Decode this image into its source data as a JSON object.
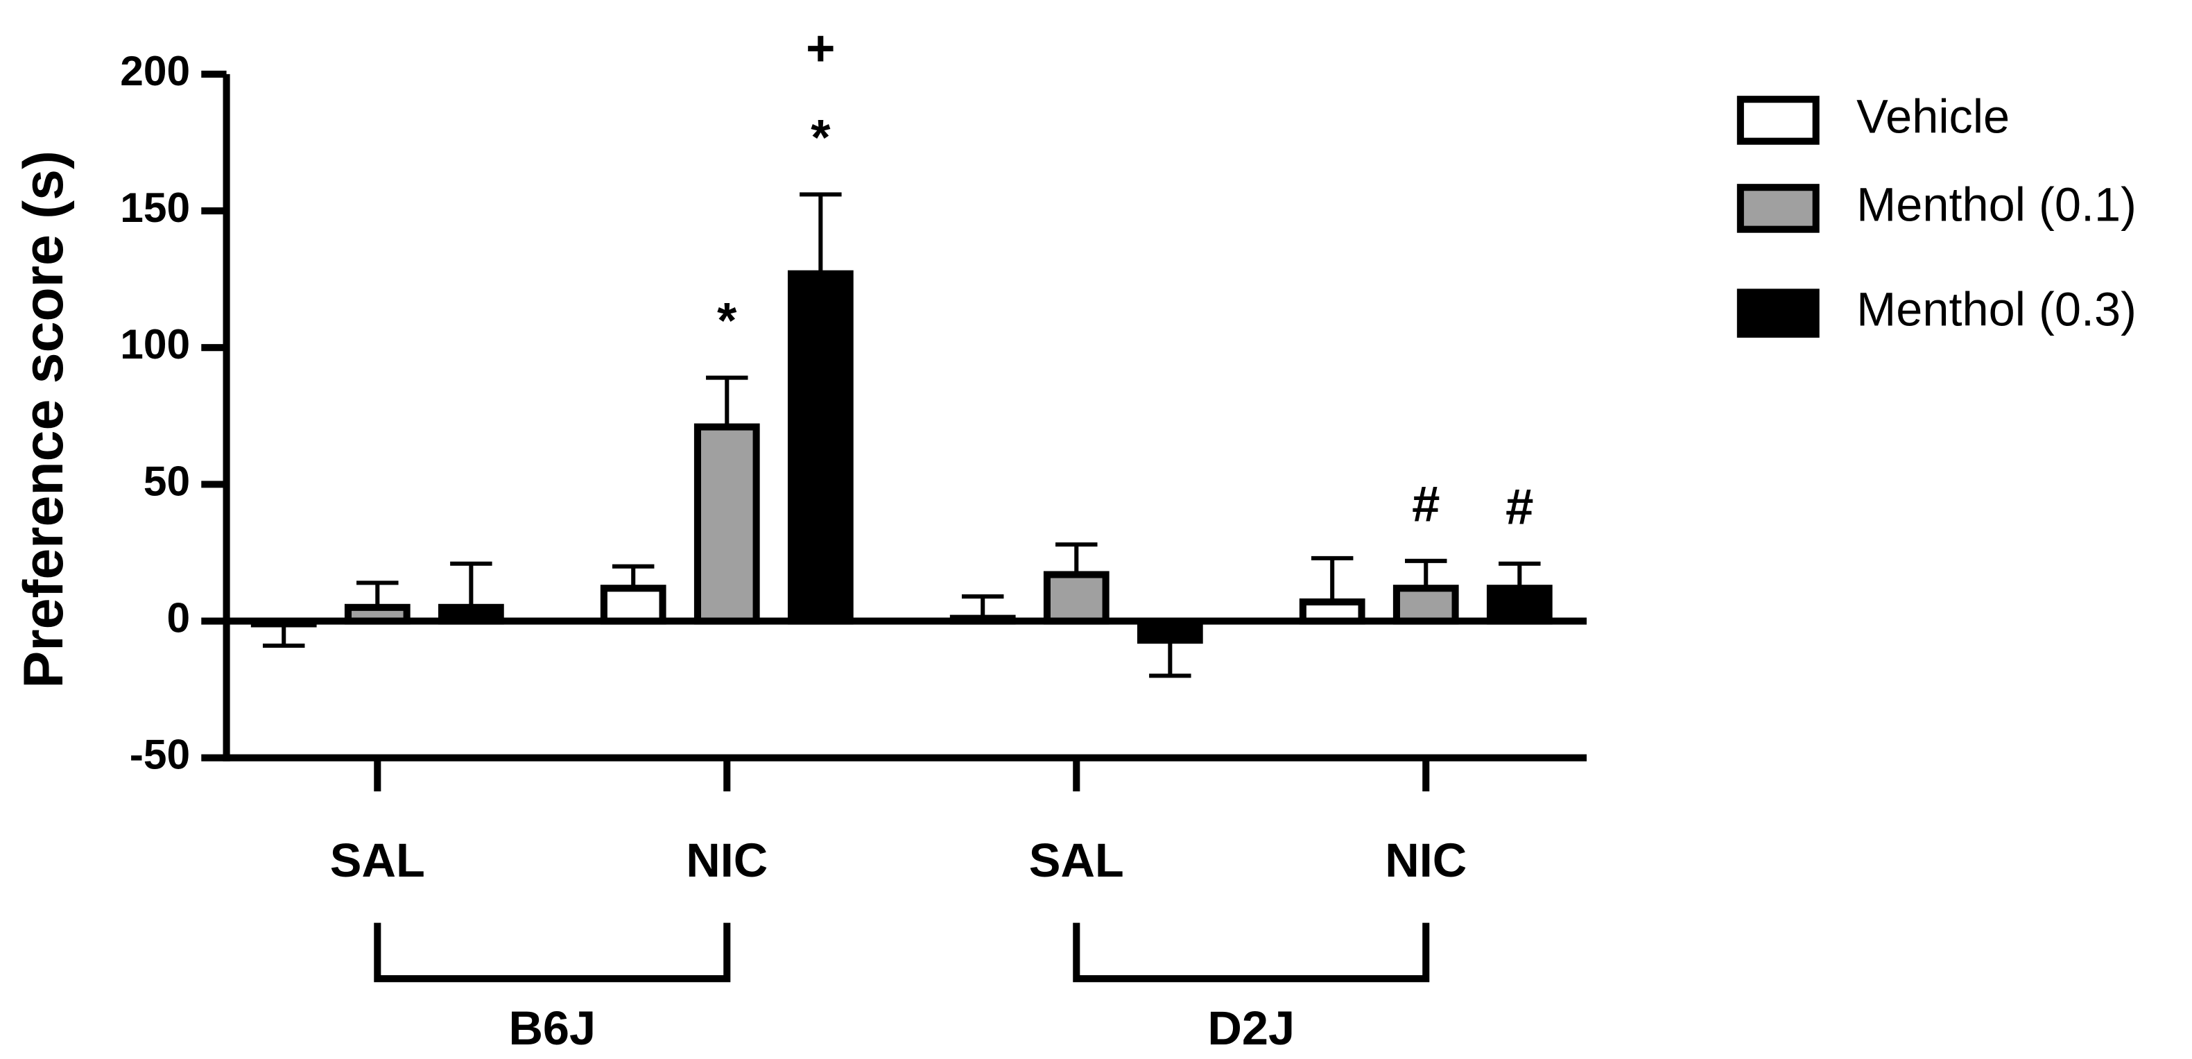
{
  "chart_data": {
    "type": "bar",
    "y_label": "Preference score (s)",
    "categories": [
      "SAL",
      "NIC",
      "SAL",
      "NIC"
    ],
    "groups": [
      {
        "name": "B6J",
        "categories": [
          0,
          1
        ]
      },
      {
        "name": "D2J",
        "categories": [
          2,
          3
        ]
      }
    ],
    "series": [
      {
        "name": "Vehicle",
        "color": "#ffffff",
        "values": [
          -1,
          12,
          1,
          7
        ],
        "errors": [
          8,
          8,
          8,
          16
        ]
      },
      {
        "name": "Menthol (0.1)",
        "color": "#a0a0a0",
        "values": [
          5,
          71,
          17,
          12
        ],
        "errors": [
          9,
          18,
          11,
          10
        ]
      },
      {
        "name": "Menthol (0.3)",
        "color": "#000000",
        "values": [
          5,
          127,
          -7,
          12
        ],
        "errors": [
          16,
          29,
          13,
          9
        ]
      }
    ],
    "annotations": [
      {
        "text": "*",
        "category": 1,
        "series": 1
      },
      {
        "text": "*",
        "category": 1,
        "series": 2
      },
      {
        "text": "+",
        "category": 1,
        "series": 2
      },
      {
        "text": "#",
        "category": 3,
        "series": 1
      },
      {
        "text": "#",
        "category": 3,
        "series": 2
      }
    ],
    "ylim": [
      -50,
      200
    ],
    "yticks": [
      -50,
      0,
      50,
      100,
      150,
      200
    ],
    "legend": "right"
  }
}
